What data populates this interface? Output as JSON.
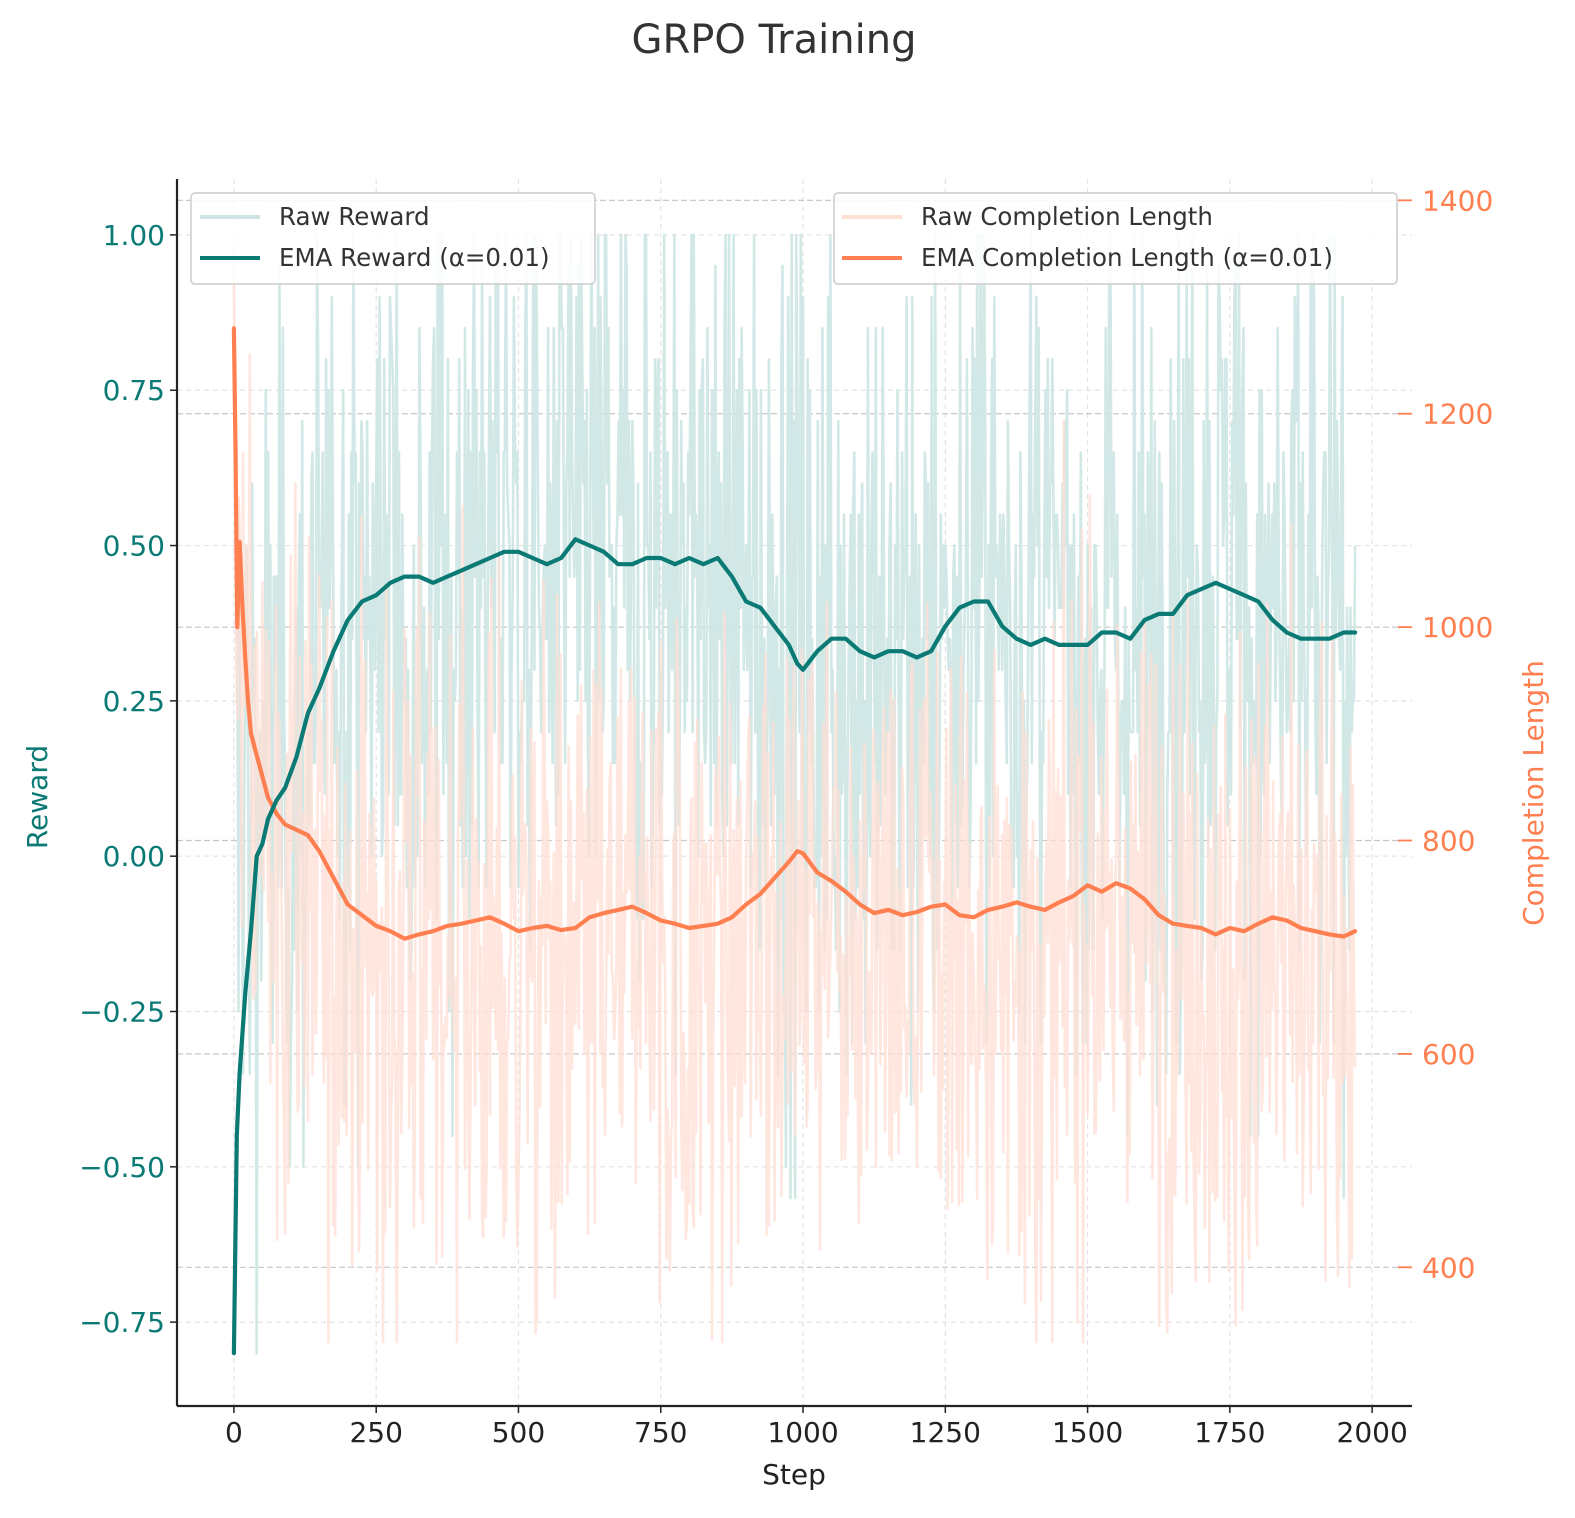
{
  "chart_data": {
    "type": "line",
    "title": "GRPO Training",
    "xlabel": "Step",
    "ylabel_left": "Reward",
    "ylabel_right": "Completion Length",
    "xlim": [
      -100,
      2070
    ],
    "ylim_left": [
      -0.885,
      1.09
    ],
    "ylim_right": [
      270,
      1420
    ],
    "xticks": [
      0,
      250,
      500,
      750,
      1000,
      1250,
      1500,
      1750,
      2000
    ],
    "xtick_labels": [
      "0",
      "250",
      "500",
      "750",
      "1000",
      "1250",
      "1500",
      "1750",
      "2000"
    ],
    "yticks_left": [
      -0.75,
      -0.5,
      -0.25,
      0.0,
      0.25,
      0.5,
      0.75,
      1.0
    ],
    "ytick_labels_left": [
      "−0.75",
      "−0.50",
      "−0.25",
      "0.00",
      "0.25",
      "0.50",
      "0.75",
      "1.00"
    ],
    "yticks_right": [
      400,
      600,
      800,
      1000,
      1200,
      1400
    ],
    "ytick_labels_right": [
      "400",
      "600",
      "800",
      "1000",
      "1200",
      "1400"
    ],
    "grid": true,
    "colors": {
      "reward": "#0b7a75",
      "reward_raw": "#cce5e3",
      "length": "#ff7f50",
      "length_raw": "#ffdfd4",
      "text": "#333333"
    },
    "legend_left": {
      "location": "top-left",
      "entries": [
        "Raw Reward",
        "EMA Reward (α=0.01)"
      ]
    },
    "legend_right": {
      "location": "top-right",
      "entries": [
        "Raw Completion Length",
        "EMA Completion Length (α=0.01)"
      ]
    },
    "series": [
      {
        "name": "EMA Reward (α=0.01)",
        "axis": "left",
        "x": [
          0,
          5,
          10,
          20,
          30,
          40,
          50,
          60,
          75,
          90,
          110,
          130,
          150,
          175,
          200,
          225,
          250,
          275,
          300,
          325,
          350,
          375,
          400,
          425,
          450,
          475,
          500,
          525,
          550,
          575,
          600,
          625,
          650,
          675,
          700,
          725,
          750,
          775,
          800,
          825,
          850,
          875,
          900,
          925,
          950,
          975,
          990,
          1000,
          1025,
          1050,
          1075,
          1100,
          1125,
          1150,
          1175,
          1200,
          1225,
          1250,
          1275,
          1300,
          1325,
          1350,
          1375,
          1400,
          1425,
          1450,
          1475,
          1500,
          1525,
          1550,
          1575,
          1600,
          1625,
          1650,
          1675,
          1700,
          1725,
          1750,
          1775,
          1800,
          1825,
          1850,
          1875,
          1900,
          1925,
          1950,
          1970
        ],
        "values": [
          -0.8,
          -0.45,
          -0.35,
          -0.22,
          -0.12,
          0.0,
          0.02,
          0.06,
          0.09,
          0.11,
          0.16,
          0.23,
          0.27,
          0.33,
          0.38,
          0.41,
          0.42,
          0.44,
          0.45,
          0.45,
          0.44,
          0.45,
          0.46,
          0.47,
          0.48,
          0.49,
          0.49,
          0.48,
          0.47,
          0.48,
          0.51,
          0.5,
          0.49,
          0.47,
          0.47,
          0.48,
          0.48,
          0.47,
          0.48,
          0.47,
          0.48,
          0.45,
          0.41,
          0.4,
          0.37,
          0.34,
          0.31,
          0.3,
          0.33,
          0.35,
          0.35,
          0.33,
          0.32,
          0.33,
          0.33,
          0.32,
          0.33,
          0.37,
          0.4,
          0.41,
          0.41,
          0.37,
          0.35,
          0.34,
          0.35,
          0.34,
          0.34,
          0.34,
          0.36,
          0.36,
          0.35,
          0.38,
          0.39,
          0.39,
          0.42,
          0.43,
          0.44,
          0.43,
          0.42,
          0.41,
          0.38,
          0.36,
          0.35,
          0.35,
          0.35,
          0.36,
          0.36
        ]
      },
      {
        "name": "EMA Completion Length (α=0.01)",
        "axis": "right",
        "x": [
          0,
          3,
          6,
          10,
          15,
          20,
          25,
          30,
          40,
          50,
          60,
          75,
          90,
          110,
          130,
          150,
          175,
          200,
          225,
          250,
          275,
          300,
          325,
          350,
          375,
          400,
          425,
          450,
          475,
          500,
          525,
          550,
          575,
          600,
          625,
          650,
          675,
          700,
          725,
          750,
          775,
          800,
          825,
          850,
          875,
          900,
          925,
          950,
          975,
          990,
          1000,
          1025,
          1050,
          1075,
          1100,
          1125,
          1150,
          1175,
          1200,
          1225,
          1250,
          1275,
          1300,
          1325,
          1350,
          1375,
          1400,
          1425,
          1450,
          1475,
          1500,
          1525,
          1550,
          1575,
          1600,
          1625,
          1650,
          1675,
          1700,
          1725,
          1750,
          1775,
          1800,
          1825,
          1850,
          1875,
          1900,
          1925,
          1950,
          1970
        ],
        "values": [
          1280,
          1160,
          1000,
          1080,
          1020,
          970,
          930,
          900,
          880,
          860,
          840,
          825,
          815,
          810,
          805,
          790,
          765,
          740,
          730,
          720,
          715,
          708,
          712,
          715,
          720,
          722,
          725,
          728,
          722,
          715,
          718,
          720,
          716,
          718,
          728,
          732,
          735,
          738,
          732,
          725,
          722,
          718,
          720,
          722,
          728,
          740,
          750,
          765,
          780,
          790,
          788,
          770,
          762,
          752,
          740,
          732,
          735,
          730,
          733,
          738,
          740,
          730,
          728,
          735,
          738,
          742,
          738,
          735,
          742,
          748,
          758,
          752,
          760,
          755,
          745,
          730,
          722,
          720,
          718,
          712,
          718,
          715,
          722,
          728,
          725,
          718,
          715,
          712,
          710,
          715
        ]
      },
      {
        "name": "Raw Reward",
        "axis": "left",
        "generated": true,
        "range": [
          -0.8,
          1.0
        ]
      },
      {
        "name": "Raw Completion Length",
        "axis": "right",
        "generated": true,
        "range": [
          330,
          1370
        ]
      }
    ]
  }
}
